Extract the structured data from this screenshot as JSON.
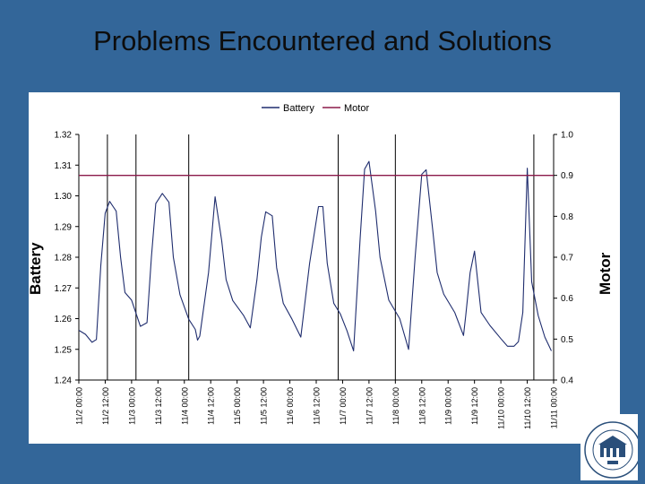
{
  "slide": {
    "title": "Problems Encountered and Solutions"
  },
  "logo": {
    "arc_text": "THE UNIVERSITY OF MISSISSIPPI",
    "bottom_text": "MEDICAL CENTER",
    "year": "1955"
  },
  "colors": {
    "background": "#336699",
    "battery": "#1f2d6e",
    "motor": "#8b1a4a",
    "gridline": "#000000"
  },
  "chart_data": {
    "type": "line",
    "title": "",
    "legend": {
      "placement": "top-center",
      "entries": [
        "Battery",
        "Motor"
      ]
    },
    "y_left": {
      "label": "Battery",
      "range": [
        1.24,
        1.32
      ],
      "ticks": [
        "1.32",
        "1.31",
        "1.30",
        "1.29",
        "1.28",
        "1.27",
        "1.26",
        "1.25",
        "1.24"
      ]
    },
    "y_right": {
      "label": "Motor",
      "range": [
        0.4,
        1.0
      ],
      "ticks": [
        "1.0",
        "0.9",
        "0.8",
        "0.7",
        "0.6",
        "0.5",
        "0.4"
      ]
    },
    "x_axis": {
      "tick_labels": [
        "11/2 00:00",
        "11/2 12:00",
        "11/3 00:00",
        "11/3 12:00",
        "11/4 00:00",
        "11/4 12:00",
        "11/5 00:00",
        "11/5 12:00",
        "11/6 00:00",
        "11/6 12:00",
        "11/7 00:00",
        "11/7 12:00",
        "11/8 00:00",
        "11/8 12:00",
        "11/9 00:00",
        "11/9 12:00",
        "11/10 00:00",
        "11/10 12:00",
        "11/11 00:00"
      ]
    },
    "vertical_markers": [
      "11/2 13:00",
      "11/3 02:00",
      "11/4 02:00",
      "11/6 22:00",
      "11/8 00:00",
      "11/10 15:00"
    ],
    "series": [
      {
        "name": "Battery",
        "axis": "left",
        "points": [
          [
            "11/2 00:00",
            1.2562
          ],
          [
            "11/2 03:00",
            1.2549
          ],
          [
            "11/2 06:00",
            1.2523
          ],
          [
            "11/2 08:00",
            1.2532
          ],
          [
            "11/2 10:00",
            1.2772
          ],
          [
            "11/2 12:00",
            1.2943
          ],
          [
            "11/2 14:00",
            1.2982
          ],
          [
            "11/2 17:00",
            1.295
          ],
          [
            "11/2 19:00",
            1.28
          ],
          [
            "11/2 21:00",
            1.2685
          ],
          [
            "11/3 00:00",
            1.266
          ],
          [
            "11/3 04:00",
            1.2575
          ],
          [
            "11/3 07:00",
            1.2587
          ],
          [
            "11/3 09:00",
            1.28
          ],
          [
            "11/3 11:00",
            1.2975
          ],
          [
            "11/3 14:00",
            1.3008
          ],
          [
            "11/3 17:00",
            1.2979
          ],
          [
            "11/3 19:00",
            1.28
          ],
          [
            "11/3 22:00",
            1.2678
          ],
          [
            "11/4 02:00",
            1.2598
          ],
          [
            "11/4 05:00",
            1.2565
          ],
          [
            "11/4 06:00",
            1.253
          ],
          [
            "11/4 07:00",
            1.2543
          ],
          [
            "11/4 11:00",
            1.275
          ],
          [
            "11/4 14:00",
            1.2997
          ],
          [
            "11/4 17:00",
            1.2853
          ],
          [
            "11/4 19:00",
            1.2727
          ],
          [
            "11/4 22:00",
            1.2659
          ],
          [
            "11/5 03:00",
            1.261
          ],
          [
            "11/5 06:00",
            1.257
          ],
          [
            "11/5 09:00",
            1.2727
          ],
          [
            "11/5 11:00",
            1.2865
          ],
          [
            "11/5 13:00",
            1.2948
          ],
          [
            "11/5 16:00",
            1.2935
          ],
          [
            "11/5 18:00",
            1.2766
          ],
          [
            "11/5 21:00",
            1.265
          ],
          [
            "11/6 01:00",
            1.2598
          ],
          [
            "11/6 05:00",
            1.254
          ],
          [
            "11/6 09:00",
            1.278
          ],
          [
            "11/6 13:00",
            1.2965
          ],
          [
            "11/6 15:00",
            1.2965
          ],
          [
            "11/6 17:00",
            1.278
          ],
          [
            "11/6 20:00",
            1.265
          ],
          [
            "11/6 23:00",
            1.2615
          ],
          [
            "11/7 02:00",
            1.256
          ],
          [
            "11/7 05:00",
            1.2495
          ],
          [
            "11/7 08:00",
            1.2865
          ],
          [
            "11/7 10:00",
            1.3087
          ],
          [
            "11/7 12:00",
            1.3112
          ],
          [
            "11/7 15:00",
            1.295
          ],
          [
            "11/7 17:00",
            1.28
          ],
          [
            "11/7 21:00",
            1.266
          ],
          [
            "11/8 02:00",
            1.26
          ],
          [
            "11/8 06:00",
            1.25
          ],
          [
            "11/8 09:00",
            1.28
          ],
          [
            "11/8 12:00",
            1.307
          ],
          [
            "11/8 14:00",
            1.3085
          ],
          [
            "11/8 17:00",
            1.289
          ],
          [
            "11/8 19:00",
            1.275
          ],
          [
            "11/8 22:00",
            1.268
          ],
          [
            "11/9 03:00",
            1.262
          ],
          [
            "11/9 07:00",
            1.2545
          ],
          [
            "11/9 08:00",
            1.261
          ],
          [
            "11/9 10:00",
            1.275
          ],
          [
            "11/9 12:00",
            1.282
          ],
          [
            "11/9 15:00",
            1.262
          ],
          [
            "11/9 19:00",
            1.2578
          ],
          [
            "11/10 00:00",
            1.2535
          ],
          [
            "11/10 03:00",
            1.251
          ],
          [
            "11/10 06:00",
            1.251
          ],
          [
            "11/10 08:00",
            1.2525
          ],
          [
            "11/10 10:00",
            1.262
          ],
          [
            "11/10 12:00",
            1.309
          ],
          [
            "11/10 14:00",
            1.272
          ],
          [
            "11/10 17:00",
            1.261
          ],
          [
            "11/10 20:00",
            1.254
          ],
          [
            "11/10 23:00",
            1.2495
          ]
        ]
      },
      {
        "name": "Motor",
        "axis": "right",
        "points": [
          [
            "11/2 00:00",
            0.9
          ],
          [
            "11/11 00:00",
            0.9
          ]
        ]
      }
    ]
  }
}
